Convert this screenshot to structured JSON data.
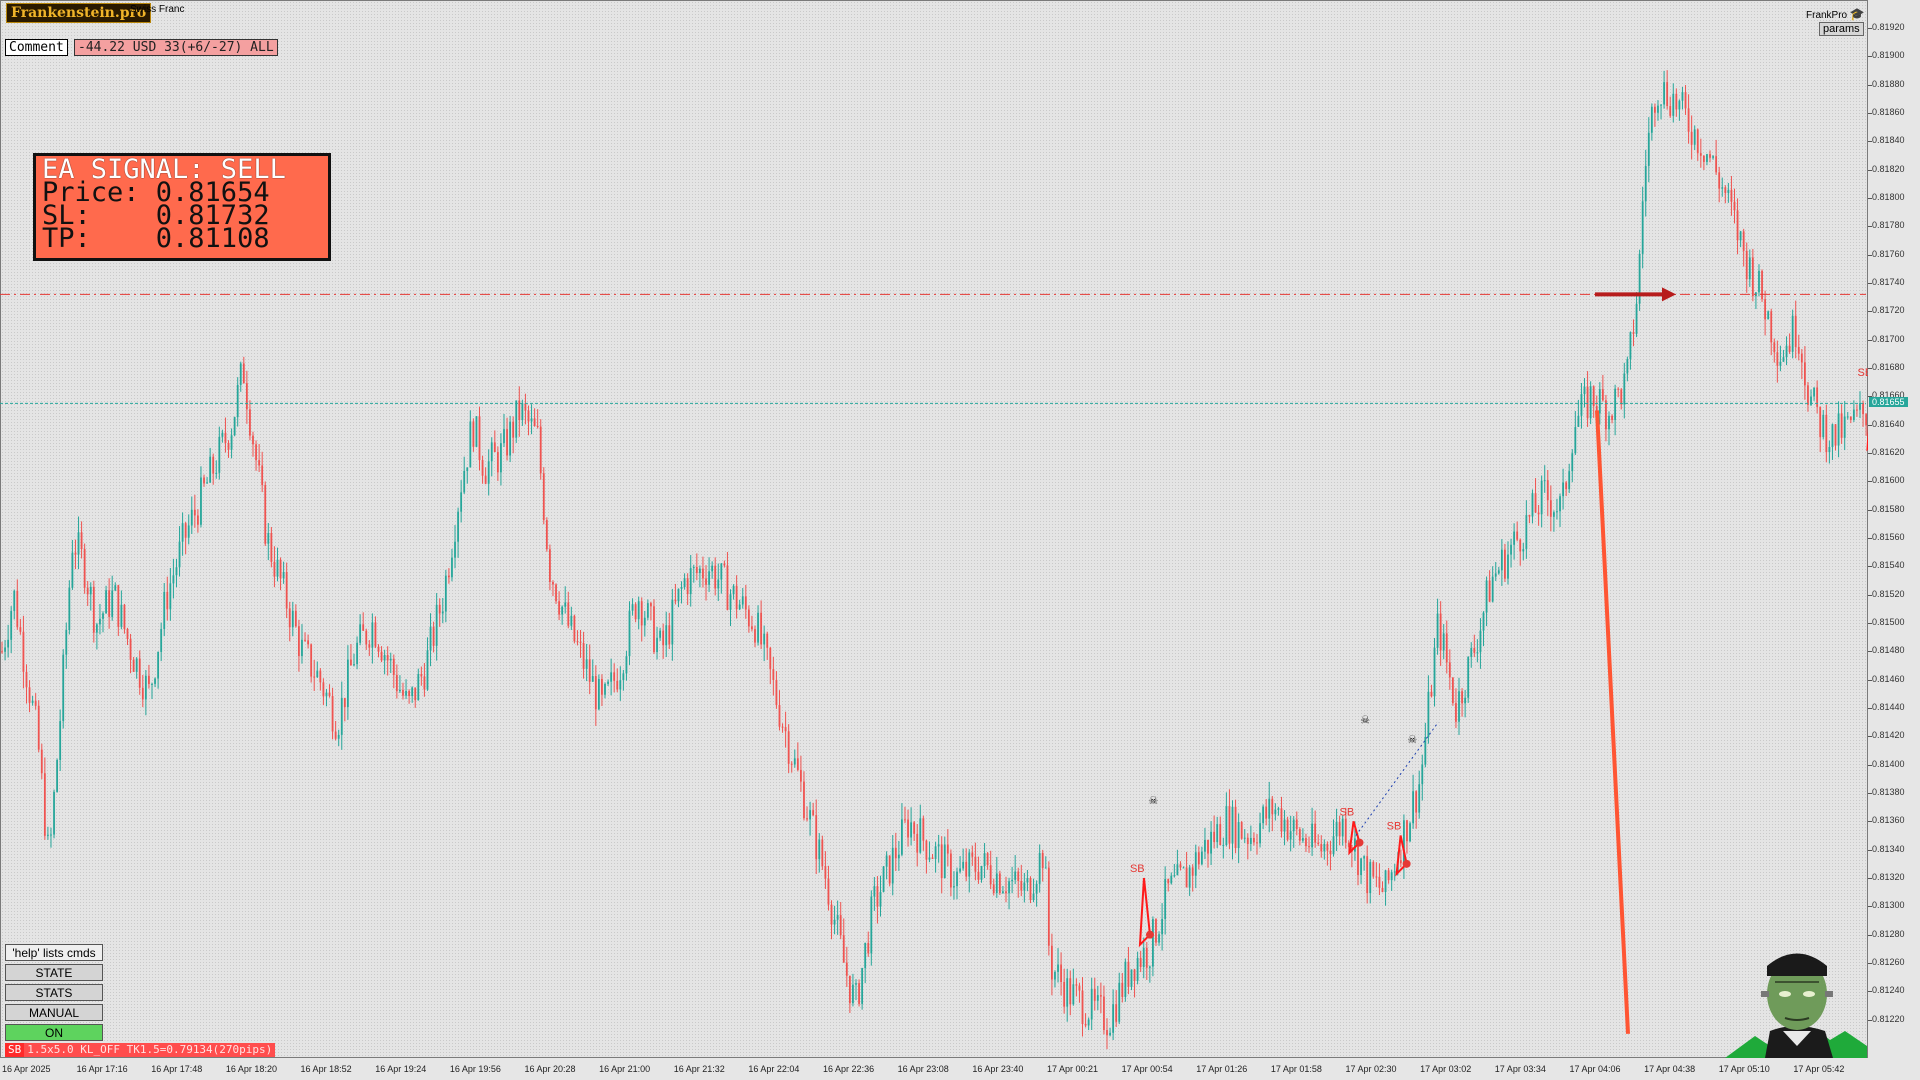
{
  "header": {
    "brand": "Frankenstein.pro",
    "symbol_description": "Swiss Franc",
    "comment_label": "Comment",
    "pnl_text": "-44.22 USD 33(+6/-27) ALL"
  },
  "signal_box": {
    "line1": "EA SIGNAL: SELL",
    "line2": "Price: 0.81654",
    "line3": "SL:    0.81732",
    "line4": "TP:    0.81108"
  },
  "top_right": {
    "label": "FrankPro",
    "params_button": "params",
    "icon": "graduation-cap-icon"
  },
  "panel": {
    "help": "'help' lists cmds",
    "state": "STATE",
    "stats": "STATS",
    "manual": "MANUAL",
    "on": "ON"
  },
  "status_bar": {
    "tag": "SB",
    "text": "1.5x5.0 KL_OFF TK1.5=0.79134(270pips)"
  },
  "current_price": "0.81655",
  "colors": {
    "bull": "#26a69a",
    "bear": "#ef5350",
    "sl_line": "#e53935",
    "price_line": "#26a69a",
    "signal_box": "#ff6a4d"
  },
  "markers": {
    "trade_label": "SB",
    "skull_icon": "skull-icon",
    "arrow": "sell-arrow-icon"
  },
  "chart_data": {
    "type": "candlestick",
    "ylim": [
      0.812,
      0.8192
    ],
    "price_ticks": [
      "0.81920",
      "0.81900",
      "0.81880",
      "0.81860",
      "0.81840",
      "0.81820",
      "0.81800",
      "0.81780",
      "0.81760",
      "0.81740",
      "0.81720",
      "0.81700",
      "0.81680",
      "0.81660",
      "0.81640",
      "0.81620",
      "0.81600",
      "0.81580",
      "0.81560",
      "0.81540",
      "0.81520",
      "0.81500",
      "0.81480",
      "0.81460",
      "0.81440",
      "0.81420",
      "0.81400",
      "0.81380",
      "0.81360",
      "0.81340",
      "0.81320",
      "0.81300",
      "0.81280",
      "0.81260",
      "0.81240",
      "0.81220"
    ],
    "time_ticks": [
      "16 Apr 2025",
      "16 Apr 17:16",
      "16 Apr 17:48",
      "16 Apr 18:20",
      "16 Apr 18:52",
      "16 Apr 19:24",
      "16 Apr 19:56",
      "16 Apr 20:28",
      "16 Apr 21:00",
      "16 Apr 21:32",
      "16 Apr 22:04",
      "16 Apr 22:36",
      "16 Apr 23:08",
      "16 Apr 23:40",
      "17 Apr 00:21",
      "17 Apr 00:54",
      "17 Apr 01:26",
      "17 Apr 01:58",
      "17 Apr 02:30",
      "17 Apr 03:02",
      "17 Apr 03:34",
      "17 Apr 04:06",
      "17 Apr 04:38",
      "17 Apr 05:10",
      "17 Apr 05:42"
    ],
    "stop_loss_level": 0.81732,
    "current_price_level": 0.81655,
    "entry_price": 0.81654,
    "take_profit": 0.81108,
    "price_path": [
      [
        0,
        0.8148
      ],
      [
        10,
        0.8152
      ],
      [
        20,
        0.8147
      ],
      [
        30,
        0.8142
      ],
      [
        40,
        0.8133
      ],
      [
        50,
        0.8144
      ],
      [
        60,
        0.8156
      ],
      [
        70,
        0.8154
      ],
      [
        80,
        0.815
      ],
      [
        95,
        0.8152
      ],
      [
        110,
        0.8148
      ],
      [
        125,
        0.8145
      ],
      [
        140,
        0.8152
      ],
      [
        155,
        0.8156
      ],
      [
        170,
        0.8159
      ],
      [
        185,
        0.8162
      ],
      [
        195,
        0.8164
      ],
      [
        205,
        0.8168
      ],
      [
        215,
        0.8162
      ],
      [
        225,
        0.8156
      ],
      [
        240,
        0.8152
      ],
      [
        255,
        0.8148
      ],
      [
        270,
        0.8146
      ],
      [
        285,
        0.8143
      ],
      [
        300,
        0.8148
      ],
      [
        315,
        0.815
      ],
      [
        330,
        0.8147
      ],
      [
        345,
        0.8144
      ],
      [
        360,
        0.8147
      ],
      [
        375,
        0.8152
      ],
      [
        390,
        0.816
      ],
      [
        400,
        0.8164
      ],
      [
        410,
        0.8161
      ],
      [
        425,
        0.8162
      ],
      [
        440,
        0.8165
      ],
      [
        455,
        0.8163
      ],
      [
        465,
        0.8154
      ],
      [
        480,
        0.815
      ],
      [
        495,
        0.8147
      ],
      [
        510,
        0.8144
      ],
      [
        525,
        0.8147
      ],
      [
        540,
        0.8152
      ],
      [
        560,
        0.8148
      ],
      [
        580,
        0.8153
      ],
      [
        600,
        0.8154
      ],
      [
        620,
        0.8152
      ],
      [
        640,
        0.815
      ],
      [
        660,
        0.8144
      ],
      [
        680,
        0.8138
      ],
      [
        700,
        0.8132
      ],
      [
        715,
        0.8126
      ],
      [
        725,
        0.8123
      ],
      [
        740,
        0.813
      ],
      [
        755,
        0.8133
      ],
      [
        770,
        0.8136
      ],
      [
        790,
        0.8134
      ],
      [
        810,
        0.8132
      ],
      [
        830,
        0.8133
      ],
      [
        850,
        0.8132
      ],
      [
        870,
        0.8131
      ],
      [
        885,
        0.8134
      ],
      [
        890,
        0.8126
      ],
      [
        905,
        0.8124
      ],
      [
        920,
        0.8123
      ],
      [
        940,
        0.8122
      ],
      [
        960,
        0.8126
      ],
      [
        975,
        0.8127
      ],
      [
        990,
        0.8131
      ],
      [
        1005,
        0.8132
      ],
      [
        1020,
        0.8134
      ],
      [
        1040,
        0.8136
      ],
      [
        1060,
        0.8135
      ],
      [
        1080,
        0.8137
      ],
      [
        1100,
        0.8135
      ],
      [
        1120,
        0.8134
      ],
      [
        1140,
        0.8136
      ],
      [
        1160,
        0.8132
      ],
      [
        1175,
        0.8131
      ],
      [
        1190,
        0.8135
      ],
      [
        1205,
        0.8139
      ],
      [
        1220,
        0.815
      ],
      [
        1235,
        0.8144
      ],
      [
        1250,
        0.8148
      ],
      [
        1265,
        0.8153
      ],
      [
        1280,
        0.8155
      ],
      [
        1295,
        0.8157
      ],
      [
        1310,
        0.8159
      ],
      [
        1325,
        0.8158
      ],
      [
        1335,
        0.8164
      ],
      [
        1350,
        0.8166
      ],
      [
        1365,
        0.8165
      ],
      [
        1380,
        0.8167
      ],
      [
        1390,
        0.8174
      ],
      [
        1395,
        0.8182
      ],
      [
        1405,
        0.8188
      ],
      [
        1420,
        0.8187
      ],
      [
        1435,
        0.8185
      ],
      [
        1450,
        0.8183
      ],
      [
        1465,
        0.818
      ],
      [
        1480,
        0.8176
      ],
      [
        1495,
        0.8173
      ],
      [
        1510,
        0.8169
      ],
      [
        1525,
        0.8171
      ],
      [
        1535,
        0.8166
      ],
      [
        1545,
        0.8164
      ],
      [
        1555,
        0.8163
      ],
      [
        1570,
        0.8164
      ],
      [
        1585,
        0.8165
      ]
    ]
  }
}
